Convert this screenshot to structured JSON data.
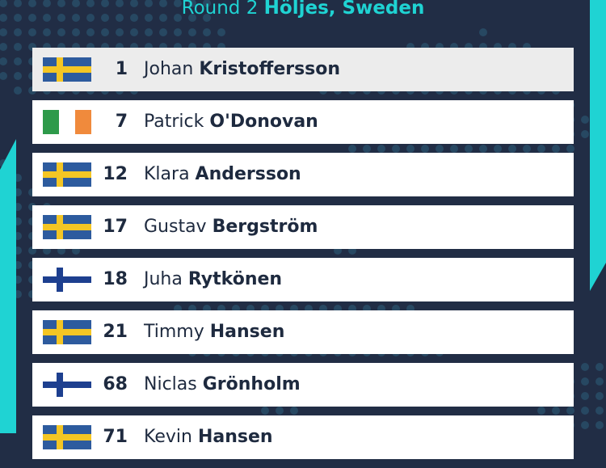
{
  "header": {
    "round_label": "Round 2",
    "venue": "Höljes, Sweden"
  },
  "colors": {
    "background": "#212d45",
    "accent": "#1fd3d3",
    "text": "#1e2a3f"
  },
  "drivers": [
    {
      "number": "1",
      "first": "Johan",
      "last": "Kristoffersson",
      "flag": "sweden-flag-icon",
      "highlight": true
    },
    {
      "number": "7",
      "first": "Patrick",
      "last": "O'Donovan",
      "flag": "ireland-flag-icon"
    },
    {
      "number": "12",
      "first": "Klara",
      "last": "Andersson",
      "flag": "sweden-flag-icon"
    },
    {
      "number": "17",
      "first": "Gustav",
      "last": "Bergström",
      "flag": "sweden-flag-icon"
    },
    {
      "number": "18",
      "first": "Juha",
      "last": "Rytkönen",
      "flag": "finland-flag-icon"
    },
    {
      "number": "21",
      "first": "Timmy",
      "last": "Hansen",
      "flag": "sweden-flag-icon"
    },
    {
      "number": "68",
      "first": "Niclas",
      "last": "Grönholm",
      "flag": "finland-flag-icon"
    },
    {
      "number": "71",
      "first": "Kevin",
      "last": "Hansen",
      "flag": "sweden-flag-icon"
    }
  ]
}
